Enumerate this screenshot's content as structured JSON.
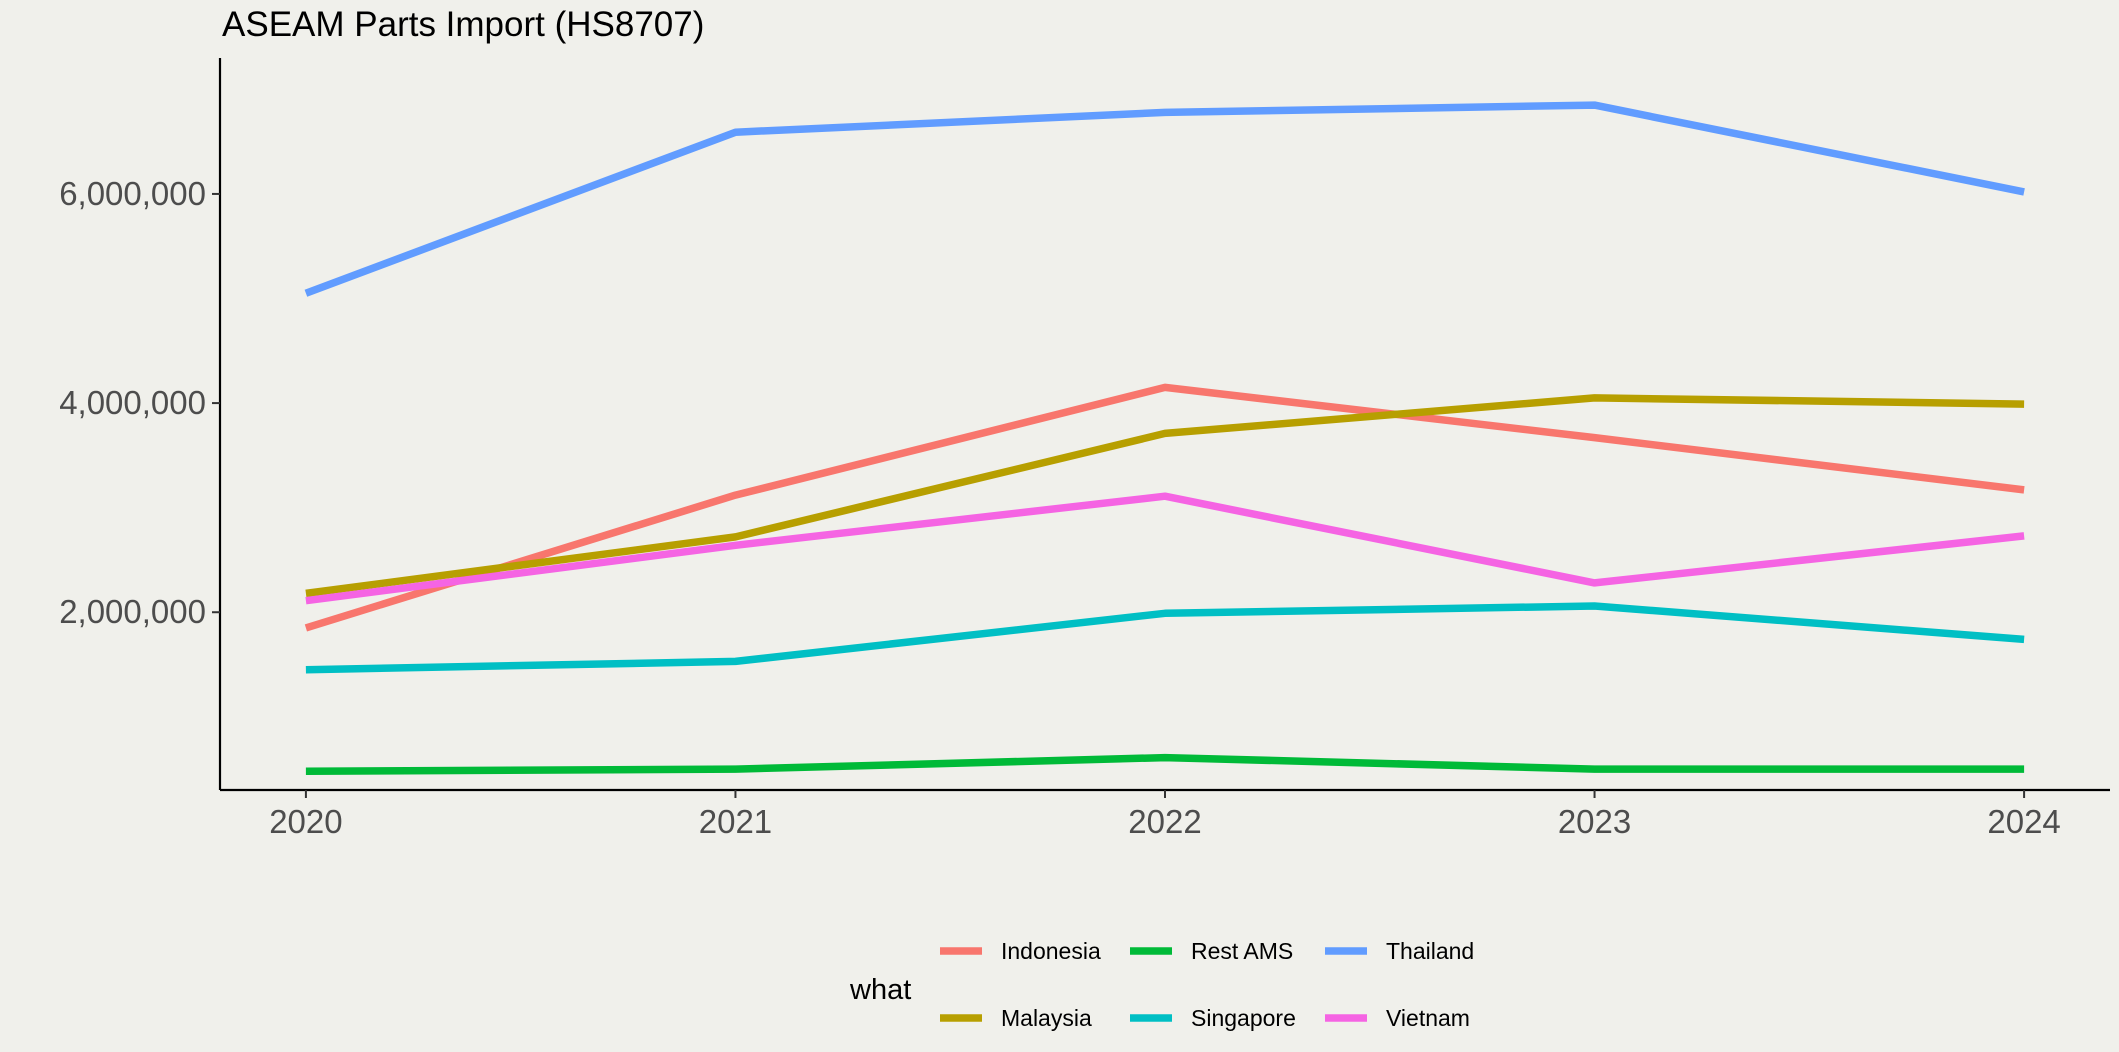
{
  "chart_data": {
    "type": "line",
    "title": "ASEAM Parts Import (HS8707)",
    "xlabel": "",
    "ylabel": "",
    "x": [
      2020,
      2021,
      2022,
      2023,
      2024
    ],
    "x_tick_labels": [
      "2020",
      "2021",
      "2022",
      "2023",
      "2024"
    ],
    "y_ticks": [
      2000000,
      4000000,
      6000000
    ],
    "y_tick_labels": [
      "2,000,000",
      "4,000,000",
      "6,000,000"
    ],
    "xlim": [
      2019.8,
      2024.2
    ],
    "ylim": [
      300000,
      7300000
    ],
    "grid": false,
    "legend": {
      "title": "what",
      "placement": "bottom"
    },
    "series": [
      {
        "name": "Indonesia",
        "color": "#F8766D",
        "values": [
          1850000,
          3120000,
          4150000,
          3670000,
          3170000
        ]
      },
      {
        "name": "Malaysia",
        "color": "#B79F00",
        "values": [
          2180000,
          2720000,
          3710000,
          4050000,
          3990000
        ]
      },
      {
        "name": "Rest AMS",
        "color": "#00BA38",
        "values": [
          480000,
          500000,
          610000,
          500000,
          500000
        ]
      },
      {
        "name": "Singapore",
        "color": "#00BFC4",
        "values": [
          1450000,
          1530000,
          1990000,
          2060000,
          1740000
        ]
      },
      {
        "name": "Thailand",
        "color": "#619CFF",
        "values": [
          5050000,
          6590000,
          6780000,
          6850000,
          6020000
        ]
      },
      {
        "name": "Vietnam",
        "color": "#F564E3",
        "values": [
          2110000,
          2640000,
          3110000,
          2280000,
          2730000
        ]
      }
    ]
  }
}
